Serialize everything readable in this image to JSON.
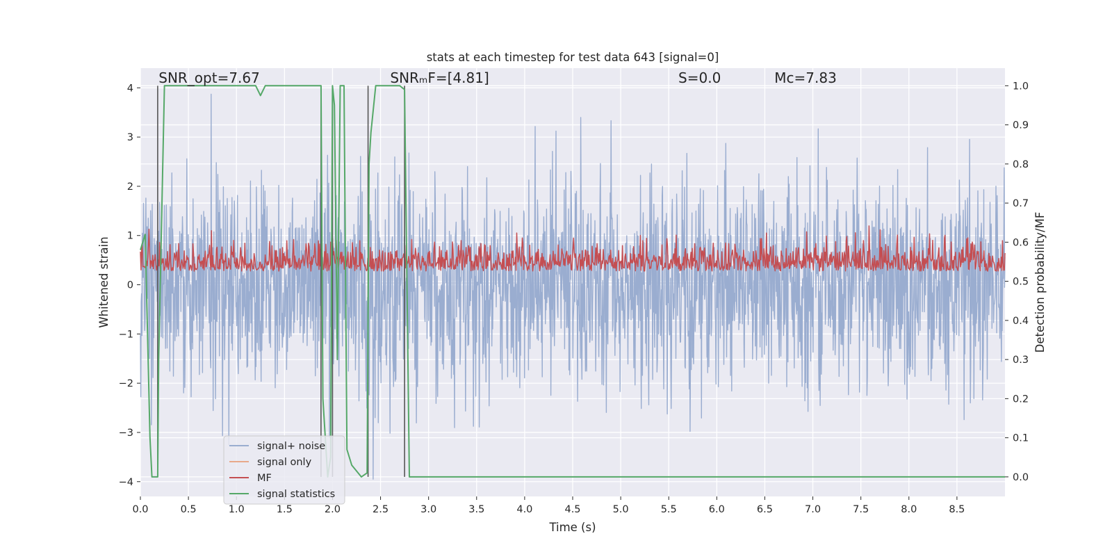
{
  "chart_data": {
    "type": "line",
    "title": "stats at each timestep for test data 643 [signal=0]",
    "xlabel": "Time (s)",
    "ylabel": "Whitened strain",
    "ylabel_right": "Detection probability/MF",
    "xlim": [
      0.0,
      9.0
    ],
    "ylim": [
      -4.3,
      4.4
    ],
    "ylim_right": [
      -0.05,
      1.045
    ],
    "x_ticks": [
      "0.0",
      "0.5",
      "1.0",
      "1.5",
      "2.0",
      "2.5",
      "3.0",
      "3.5",
      "4.0",
      "4.5",
      "5.0",
      "5.5",
      "6.0",
      "6.5",
      "7.0",
      "7.5",
      "8.0",
      "8.5"
    ],
    "x_tick_values": [
      0,
      0.5,
      1,
      1.5,
      2,
      2.5,
      3,
      3.5,
      4,
      4.5,
      5,
      5.5,
      6,
      6.5,
      7,
      7.5,
      8,
      8.5
    ],
    "y_ticks": [
      "4",
      "3",
      "2",
      "1",
      "0",
      "−1",
      "−2",
      "−3",
      "−4"
    ],
    "y_tick_values": [
      4,
      3,
      2,
      1,
      0,
      -1,
      -2,
      -3,
      -4
    ],
    "y_ticks_right": [
      "1.0",
      "0.9",
      "0.8",
      "0.7",
      "0.6",
      "0.5",
      "0.4",
      "0.3",
      "0.2",
      "0.1",
      "0.0"
    ],
    "y_tick_values_right": [
      1.0,
      0.9,
      0.8,
      0.7,
      0.6,
      0.5,
      0.4,
      0.3,
      0.2,
      0.1,
      0.0
    ],
    "annotations": [
      {
        "name": "snr-opt",
        "text": "SNR_opt=7.67",
        "x": 0.19,
        "y": 4.1
      },
      {
        "name": "snr-mf",
        "text": "SNRₘF=[4.81]",
        "x": 2.6,
        "y": 4.1
      },
      {
        "name": "s-value",
        "text": "S=0.0",
        "x": 5.6,
        "y": 4.1
      },
      {
        "name": "mc-value",
        "text": "Mc=7.83",
        "x": 6.6,
        "y": 4.1
      }
    ],
    "vertical_markers": [
      0.18,
      1.88,
      2.0,
      2.37,
      2.75
    ],
    "series": [
      {
        "name": "signal+ noise",
        "color": "#9aadd0",
        "axis": "left",
        "kind": "noise",
        "std": 1.05,
        "seed": 643
      },
      {
        "name": "signal only",
        "color": "#e8a98a",
        "axis": "left",
        "kind": "flat",
        "values": []
      },
      {
        "name": "MF",
        "color": "#c44e52",
        "axis": "right",
        "kind": "mf",
        "mean": 0.54,
        "amplitude": 0.035
      },
      {
        "name": "signal statistics",
        "color": "#55a868",
        "axis": "right",
        "kind": "line",
        "x": [
          0.0,
          0.05,
          0.1,
          0.12,
          0.18,
          0.19,
          0.25,
          0.5,
          1.2,
          1.25,
          1.3,
          1.8,
          1.88,
          1.9,
          1.95,
          1.98,
          2.0,
          2.02,
          2.05,
          2.08,
          2.12,
          2.15,
          2.2,
          2.3,
          2.36,
          2.38,
          2.4,
          2.45,
          2.7,
          2.75,
          2.8,
          9.0
        ],
        "y": [
          0.58,
          0.62,
          0.1,
          0.0,
          0.0,
          0.3,
          1.0,
          1.0,
          1.0,
          0.975,
          1.0,
          1.0,
          1.0,
          0.2,
          0.0,
          0.05,
          1.0,
          0.95,
          0.3,
          1.0,
          1.0,
          0.07,
          0.03,
          0.0,
          0.01,
          0.8,
          0.88,
          1.0,
          1.0,
          0.99,
          0.0,
          0.0
        ]
      }
    ],
    "legend": {
      "position": "lower-left",
      "entries": [
        "signal+ noise",
        "signal only",
        "MF",
        "signal statistics"
      ]
    },
    "grid": true
  }
}
